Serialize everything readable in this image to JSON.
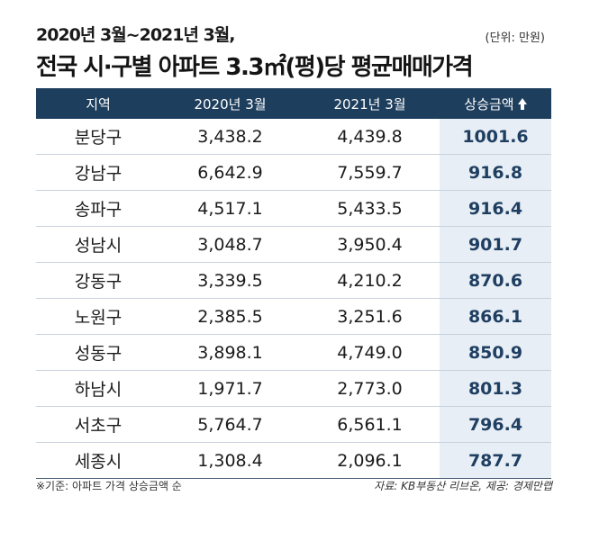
{
  "header": {
    "subtitle": "2020년 3월~2021년 3월,",
    "title": "전국 시·구별 아파트 3.3㎡(평)당 평균매매가격",
    "unit": "(단위: 만원)"
  },
  "chart_data": {
    "type": "table",
    "columns": [
      "지역",
      "2020년 3월",
      "2021년 3월",
      "상승금액"
    ],
    "rows": [
      [
        "분당구",
        "3,438.2",
        "4,439.8",
        "1001.6"
      ],
      [
        "강남구",
        "6,642.9",
        "7,559.7",
        "916.8"
      ],
      [
        "송파구",
        "4,517.1",
        "5,433.5",
        "916.4"
      ],
      [
        "성남시",
        "3,048.7",
        "3,950.4",
        "901.7"
      ],
      [
        "강동구",
        "3,339.5",
        "4,210.2",
        "870.6"
      ],
      [
        "노원구",
        "2,385.5",
        "3,251.6",
        "866.1"
      ],
      [
        "성동구",
        "3,898.1",
        "4,749.0",
        "850.9"
      ],
      [
        "하남시",
        "1,971.7",
        "2,773.0",
        "801.3"
      ],
      [
        "서초구",
        "5,764.7",
        "6,561.1",
        "796.4"
      ],
      [
        "세종시",
        "1,308.4",
        "2,096.1",
        "787.7"
      ]
    ]
  },
  "footer": {
    "note": "※기준: 아파트 가격 상승금액 순",
    "source": "자료: KB부동산 리브온, 제공: 경제만랩"
  },
  "colors": {
    "header_bg": "#1d3e5c",
    "highlight_bg": "#e8eef5",
    "highlight_text": "#1f3f61"
  },
  "icons": {
    "sort": "arrow-up-icon"
  }
}
